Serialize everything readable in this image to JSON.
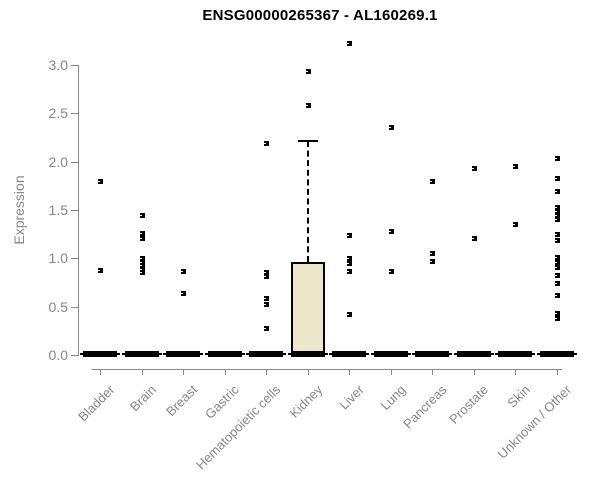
{
  "chart_data": {
    "type": "box",
    "title": "ENSG00000265367 - AL160269.1",
    "ylabel": "Expression",
    "xlabel": "",
    "ylim": [
      0.0,
      3.0
    ],
    "yticks": [
      0.0,
      0.5,
      1.0,
      1.5,
      2.0,
      2.5,
      3.0
    ],
    "grid": false,
    "legend_position": "none",
    "categories": [
      "Bladder",
      "Brain",
      "Breast",
      "Gastric",
      "Hematopoietic cells",
      "Kidney",
      "Liver",
      "Lung",
      "Pancreas",
      "Prostate",
      "Skin",
      "Unknown / Other"
    ],
    "series": [
      {
        "category": "Bladder",
        "zero_bar": true,
        "box": null,
        "points": [
          1.8,
          0.88
        ]
      },
      {
        "category": "Brain",
        "zero_bar": true,
        "box": null,
        "points": [
          1.45,
          1.26,
          1.21,
          1.0,
          0.96,
          0.93,
          0.89,
          0.86
        ]
      },
      {
        "category": "Breast",
        "zero_bar": true,
        "box": null,
        "points": [
          0.87,
          0.64
        ]
      },
      {
        "category": "Gastric",
        "zero_bar": true,
        "box": null,
        "points": []
      },
      {
        "category": "Hematopoietic cells",
        "zero_bar": true,
        "box": null,
        "points": [
          2.19,
          0.86,
          0.82,
          0.59,
          0.53,
          0.28
        ]
      },
      {
        "category": "Kidney",
        "zero_bar": true,
        "box": {
          "whisker_low": 0.0,
          "q1": 0.0,
          "median": 0.0,
          "q3": 0.96,
          "whisker_high": 2.21
        },
        "points": [
          2.94,
          2.59
        ]
      },
      {
        "category": "Liver",
        "zero_bar": true,
        "box": null,
        "points": [
          3.23,
          1.24,
          1.0,
          0.95,
          0.87,
          0.42
        ]
      },
      {
        "category": "Lung",
        "zero_bar": true,
        "box": null,
        "points": [
          2.36,
          1.28,
          0.87
        ]
      },
      {
        "category": "Pancreas",
        "zero_bar": true,
        "box": null,
        "points": [
          1.8,
          1.05,
          0.97
        ]
      },
      {
        "category": "Prostate",
        "zero_bar": true,
        "box": null,
        "points": [
          1.93,
          1.21
        ]
      },
      {
        "category": "Skin",
        "zero_bar": true,
        "box": null,
        "points": [
          1.95,
          1.35
        ]
      },
      {
        "category": "Unknown / Other",
        "zero_bar": true,
        "box": null,
        "points": [
          2.04,
          1.83,
          1.7,
          1.53,
          1.49,
          1.45,
          1.41,
          1.25,
          1.19,
          1.01,
          0.96,
          0.91,
          0.83,
          0.74,
          0.62,
          0.43,
          0.38
        ]
      }
    ],
    "colors": {
      "box_fill": "#ece6cb",
      "box_border": "#000000",
      "point": "#000000",
      "zero_bar": "#000000",
      "axis": "#888888",
      "tick_label": "#878787",
      "title": "#000000"
    }
  }
}
